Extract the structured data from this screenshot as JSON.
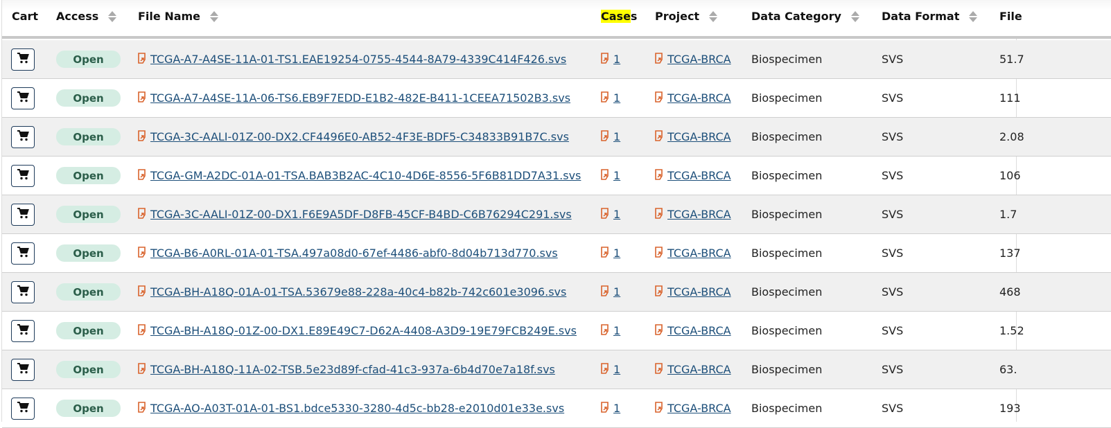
{
  "table": {
    "columns": [
      {
        "label": "Cart",
        "sortable": false
      },
      {
        "label": "Access",
        "sortable": true
      },
      {
        "label": "File Name",
        "sortable": true
      },
      {
        "label": "Cases",
        "highlight": "Case",
        "rest": "s",
        "sortable": false
      },
      {
        "label": "Project",
        "sortable": true
      },
      {
        "label": "Data Category",
        "sortable": true
      },
      {
        "label": "Data Format",
        "sortable": true
      },
      {
        "label": "File",
        "sortable": false
      }
    ],
    "rows": [
      {
        "access": "Open",
        "file_name": "TCGA-A7-A4SE-11A-01-TS1.EAE19254-0755-4544-8A79-4339C414F426.svs",
        "cases": "1",
        "project": "TCGA-BRCA",
        "category": "Biospecimen",
        "format": "SVS",
        "size": "51.7"
      },
      {
        "access": "Open",
        "file_name": "TCGA-A7-A4SE-11A-06-TS6.EB9F7EDD-E1B2-482E-B411-1CEEA71502B3.svs",
        "cases": "1",
        "project": "TCGA-BRCA",
        "category": "Biospecimen",
        "format": "SVS",
        "size": "111"
      },
      {
        "access": "Open",
        "file_name": "TCGA-3C-AALI-01Z-00-DX2.CF4496E0-AB52-4F3E-BDF5-C34833B91B7C.svs",
        "cases": "1",
        "project": "TCGA-BRCA",
        "category": "Biospecimen",
        "format": "SVS",
        "size": "2.08"
      },
      {
        "access": "Open",
        "file_name": "TCGA-GM-A2DC-01A-01-TSA.BAB3B2AC-4C10-4D6E-8556-5F6B81DD7A31.svs",
        "cases": "1",
        "project": "TCGA-BRCA",
        "category": "Biospecimen",
        "format": "SVS",
        "size": "106"
      },
      {
        "access": "Open",
        "file_name": "TCGA-3C-AALI-01Z-00-DX1.F6E9A5DF-D8FB-45CF-B4BD-C6B76294C291.svs",
        "cases": "1",
        "project": "TCGA-BRCA",
        "category": "Biospecimen",
        "format": "SVS",
        "size": "1.7"
      },
      {
        "access": "Open",
        "file_name": "TCGA-B6-A0RL-01A-01-TSA.497a08d0-67ef-4486-abf0-8d04b713d770.svs",
        "cases": "1",
        "project": "TCGA-BRCA",
        "category": "Biospecimen",
        "format": "SVS",
        "size": "137"
      },
      {
        "access": "Open",
        "file_name": "TCGA-BH-A18Q-01A-01-TSA.53679e88-228a-40c4-b82b-742c601e3096.svs",
        "cases": "1",
        "project": "TCGA-BRCA",
        "category": "Biospecimen",
        "format": "SVS",
        "size": "468"
      },
      {
        "access": "Open",
        "file_name": "TCGA-BH-A18Q-01Z-00-DX1.E89E49C7-D62A-4408-A3D9-19E79FCB249E.svs",
        "cases": "1",
        "project": "TCGA-BRCA",
        "category": "Biospecimen",
        "format": "SVS",
        "size": "1.52"
      },
      {
        "access": "Open",
        "file_name": "TCGA-BH-A18Q-11A-02-TSB.5e23d89f-cfad-41c3-937a-6b4d70e7a18f.svs",
        "cases": "1",
        "project": "TCGA-BRCA",
        "category": "Biospecimen",
        "format": "SVS",
        "size": "63."
      },
      {
        "access": "Open",
        "file_name": "TCGA-AO-A03T-01A-01-BS1.bdce5330-3280-4d5c-bb28-e2010d01e33e.svs",
        "cases": "1",
        "project": "TCGA-BRCA",
        "category": "Biospecimen",
        "format": "SVS",
        "size": "193"
      }
    ]
  },
  "colors": {
    "link": "#1d4f7a",
    "external_icon": "#d9622b",
    "open_badge_bg": "#d5ede3",
    "highlight": "#ffff00"
  },
  "icons": {
    "cart": "cart-icon",
    "external_link": "external-link-icon",
    "sort": "sort-icon"
  }
}
